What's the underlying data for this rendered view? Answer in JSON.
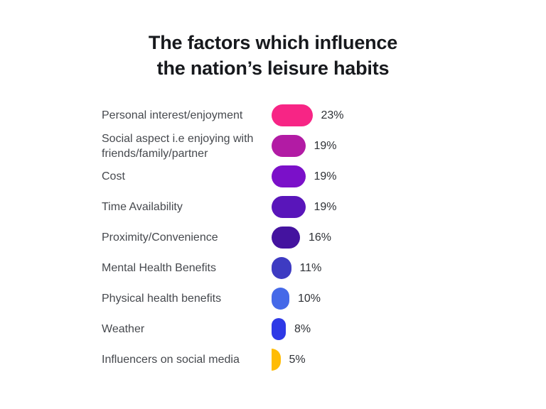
{
  "title": {
    "line1": "The factors which influence",
    "line2": "the nation’s leisure habits"
  },
  "chart_data": {
    "type": "bar",
    "orientation": "horizontal",
    "title": "The factors which influence the nation’s leisure habits",
    "unit": "%",
    "grid": false,
    "legend": "none",
    "axes_visible": false,
    "value_range": [
      0,
      25
    ],
    "categories": [
      "Personal interest/enjoyment",
      "Social aspect i.e enjoying with friends/family/partner",
      "Cost",
      "Time Availability",
      "Proximity/Convenience",
      "Mental Health Benefits",
      "Physical health benefits",
      "Weather",
      "Influencers on social media"
    ],
    "values": [
      23,
      19,
      19,
      19,
      16,
      11,
      10,
      8,
      5
    ],
    "value_labels": [
      "23%",
      "19%",
      "19%",
      "19%",
      "16%",
      "11%",
      "10%",
      "8%",
      "5%"
    ],
    "colors": [
      "#F72585",
      "#B21BA4",
      "#7B10C9",
      "#5915BA",
      "#44139F",
      "#3E3BC2",
      "#4569E8",
      "#2E39E6",
      "#FFBC05"
    ]
  },
  "style_colors": {
    "background": "#ffffff",
    "title_text": "#17191d",
    "category_text": "#46494e",
    "value_text": "#2e3136"
  }
}
